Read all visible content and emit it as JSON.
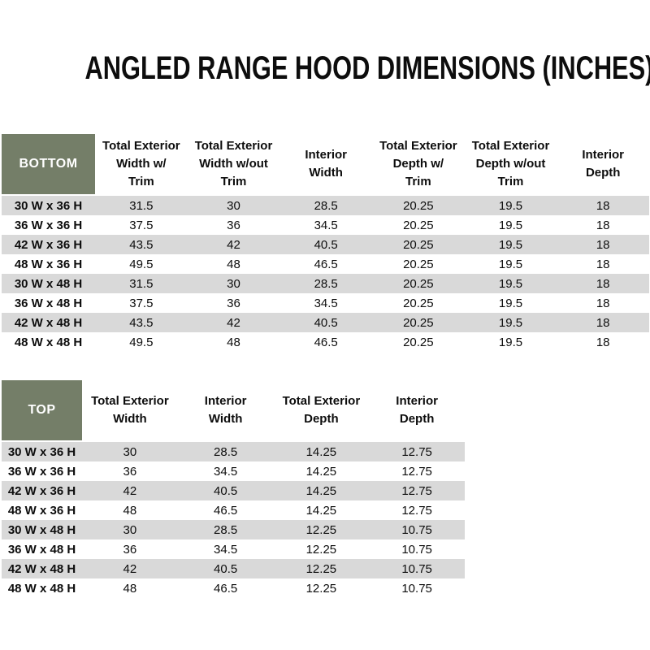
{
  "title": "ANGLED RANGE HOOD DIMENSIONS (INCHES)",
  "colors": {
    "header_green": "#747E68",
    "row_stripe_gray": "#D9D9D9",
    "row_alt_white": "#FFFFFF",
    "label_text": "#FFFFFF",
    "body_text": "#0D0D0D"
  },
  "bottom_table": {
    "label": "BOTTOM",
    "columns": [
      "Total Exterior\nWidth w/\nTrim",
      "Total Exterior\nWidth w/out\nTrim",
      "Interior\nWidth",
      "Total Exterior\nDepth w/\nTrim",
      "Total Exterior\nDepth w/out\nTrim",
      "Interior\nDepth"
    ],
    "rows": [
      {
        "size": "30 W x 36 H",
        "values": [
          "31.5",
          "30",
          "28.5",
          "20.25",
          "19.5",
          "18"
        ]
      },
      {
        "size": "36 W x 36 H",
        "values": [
          "37.5",
          "36",
          "34.5",
          "20.25",
          "19.5",
          "18"
        ]
      },
      {
        "size": "42 W x 36 H",
        "values": [
          "43.5",
          "42",
          "40.5",
          "20.25",
          "19.5",
          "18"
        ]
      },
      {
        "size": "48 W x 36 H",
        "values": [
          "49.5",
          "48",
          "46.5",
          "20.25",
          "19.5",
          "18"
        ]
      },
      {
        "size": "30 W x 48 H",
        "values": [
          "31.5",
          "30",
          "28.5",
          "20.25",
          "19.5",
          "18"
        ]
      },
      {
        "size": "36 W x 48 H",
        "values": [
          "37.5",
          "36",
          "34.5",
          "20.25",
          "19.5",
          "18"
        ]
      },
      {
        "size": "42 W x 48 H",
        "values": [
          "43.5",
          "42",
          "40.5",
          "20.25",
          "19.5",
          "18"
        ]
      },
      {
        "size": "48 W x 48 H",
        "values": [
          "49.5",
          "48",
          "46.5",
          "20.25",
          "19.5",
          "18"
        ]
      }
    ]
  },
  "top_table": {
    "label": "TOP",
    "columns": [
      "Total Exterior\nWidth",
      "Interior\nWidth",
      "Total Exterior\nDepth",
      "Interior\nDepth"
    ],
    "rows": [
      {
        "size": "30 W x 36 H",
        "values": [
          "30",
          "28.5",
          "14.25",
          "12.75"
        ]
      },
      {
        "size": "36 W x 36 H",
        "values": [
          "36",
          "34.5",
          "14.25",
          "12.75"
        ]
      },
      {
        "size": "42 W x 36 H",
        "values": [
          "42",
          "40.5",
          "14.25",
          "12.75"
        ]
      },
      {
        "size": "48 W x 36 H",
        "values": [
          "48",
          "46.5",
          "14.25",
          "12.75"
        ]
      },
      {
        "size": "30 W x 48 H",
        "values": [
          "30",
          "28.5",
          "12.25",
          "10.75"
        ]
      },
      {
        "size": "36 W x 48 H",
        "values": [
          "36",
          "34.5",
          "12.25",
          "10.75"
        ]
      },
      {
        "size": "42 W x 48 H",
        "values": [
          "42",
          "40.5",
          "12.25",
          "10.75"
        ]
      },
      {
        "size": "48 W x 48 H",
        "values": [
          "48",
          "46.5",
          "12.25",
          "10.75"
        ]
      }
    ]
  }
}
